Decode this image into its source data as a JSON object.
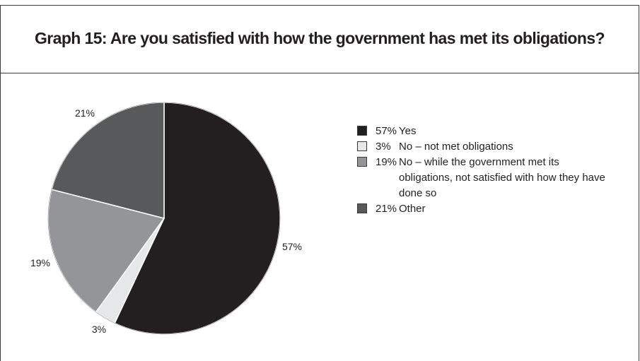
{
  "title": "Graph 15: Are you satisfied with how the government has met its obligations?",
  "chart_data": {
    "type": "pie",
    "title": "Graph 15: Are you satisfied with how the government has met its obligations?",
    "slices": [
      {
        "label": "Yes",
        "value": 57,
        "pct_label": "57%",
        "color": "#231f20"
      },
      {
        "label": "No – not met obligations",
        "value": 3,
        "pct_label": "3%",
        "color": "#e6e7e8"
      },
      {
        "label": "No – while the government met its obligations, not satisfied with how they have done so",
        "value": 19,
        "pct_label": "19%",
        "color": "#939598"
      },
      {
        "label": "Other",
        "value": 21,
        "pct_label": "21%",
        "color": "#58595b"
      }
    ],
    "legend_position": "right",
    "start_angle": "12 o'clock",
    "direction": "clockwise"
  }
}
